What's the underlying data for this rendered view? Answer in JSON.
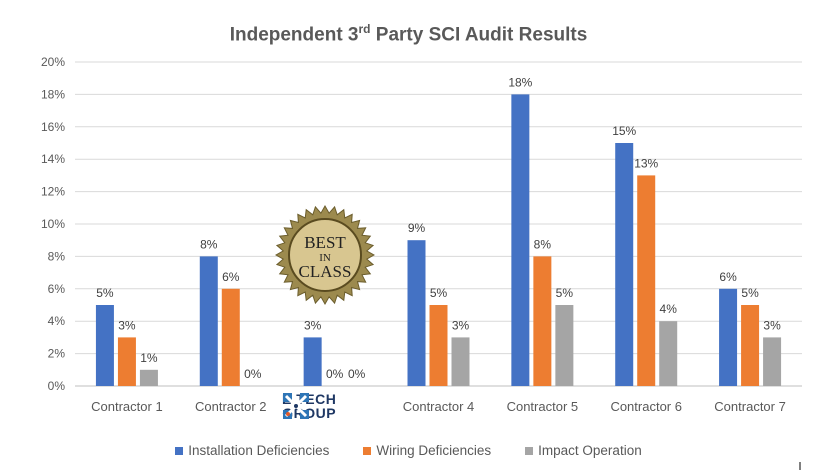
{
  "chart_data": {
    "type": "bar",
    "title_pre": "Independent 3",
    "title_sup": "rd",
    "title_post": " Party SCI Audit Results",
    "categories": [
      "Contractor 1",
      "Contractor 2",
      "",
      "Contractor 4",
      "Contractor 5",
      "Contractor 6",
      "Contractor 7"
    ],
    "series": [
      {
        "name": "Installation Deficiencies",
        "color": "#4472c4",
        "values": [
          5,
          8,
          3,
          9,
          18,
          15,
          6
        ]
      },
      {
        "name": "Wiring Deficiencies",
        "color": "#ed7d31",
        "values": [
          3,
          6,
          0,
          5,
          8,
          13,
          5
        ]
      },
      {
        "name": "Impact Operation",
        "color": "#a5a5a5",
        "values": [
          1,
          0,
          0,
          3,
          5,
          4,
          3
        ]
      }
    ],
    "ylim": [
      0,
      20
    ],
    "yticks": [
      "0%",
      "2%",
      "4%",
      "6%",
      "8%",
      "10%",
      "12%",
      "14%",
      "16%",
      "18%",
      "20%"
    ],
    "grid": true,
    "legend_position": "bottom"
  },
  "badge": {
    "line1": "BEST",
    "line2": "IN",
    "line3": "CLASS"
  },
  "logo": {
    "line1": "E TECH",
    "line2": "GROUP"
  }
}
